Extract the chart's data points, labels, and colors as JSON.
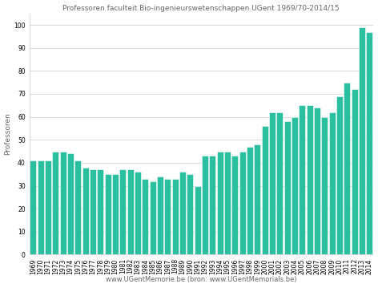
{
  "title": "Professoren faculteit Bio-ingenieurswetenschappen UGent 1969/70-2014/15",
  "xlabel": "www.UGentMemorie.be (bron: www.UGentMemorials.be)",
  "ylabel": "Professoren",
  "bar_color": "#2abf9e",
  "ylim": [
    0,
    105
  ],
  "yticks": [
    0,
    10,
    20,
    30,
    40,
    50,
    60,
    70,
    80,
    90,
    100
  ],
  "categories": [
    "1969",
    "1970",
    "1971",
    "1972",
    "1973",
    "1974",
    "1975",
    "1976",
    "1977",
    "1978",
    "1979",
    "1980",
    "1981",
    "1982",
    "1983",
    "1984",
    "1985",
    "1986",
    "1987",
    "1988",
    "1989",
    "1990",
    "1991",
    "1992",
    "1993",
    "1994",
    "1995",
    "1996",
    "1997",
    "1998",
    "1999",
    "2000",
    "2001",
    "2002",
    "2003",
    "2004",
    "2005",
    "2006",
    "2007",
    "2008",
    "2009",
    "2010",
    "2011",
    "2012",
    "2013",
    "2014"
  ],
  "values": [
    41,
    41,
    41,
    45,
    45,
    44,
    41,
    38,
    37,
    37,
    35,
    35,
    37,
    37,
    36,
    33,
    32,
    34,
    33,
    33,
    36,
    35,
    30,
    43,
    43,
    45,
    45,
    43,
    45,
    47,
    48,
    56,
    62,
    62,
    58,
    60,
    65,
    65,
    64,
    60,
    62,
    69,
    75,
    72,
    99,
    97
  ],
  "background_color": "#ffffff",
  "plot_bg_color": "#ffffff",
  "title_color": "#666666",
  "title_fontsize": 6.5,
  "xlabel_fontsize": 6.0,
  "ylabel_fontsize": 6.5,
  "tick_fontsize": 5.5
}
